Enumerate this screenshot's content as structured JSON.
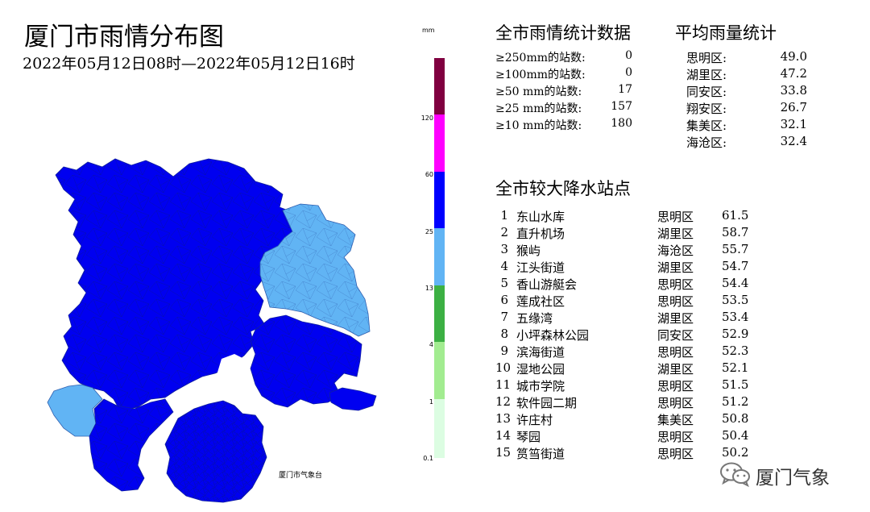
{
  "title": "厦门市雨情分布图",
  "subtitle": "2022年05月12日08时—2022年05月12日16时",
  "credit": "厦门市气象台",
  "legend": {
    "unit": "mm",
    "segments": [
      {
        "color": "#800040"
      },
      {
        "color": "#ff00ff"
      },
      {
        "color": "#0000ff"
      },
      {
        "color": "#61b4f4"
      },
      {
        "color": "#3cb043"
      },
      {
        "color": "#a2ec90"
      },
      {
        "color": "#dcfde2"
      }
    ],
    "ticks": [
      "120",
      "60",
      "25",
      "13",
      "4",
      "1",
      "0.1"
    ]
  },
  "stats": {
    "title": "全市雨情统计数据",
    "rows": [
      {
        "label": "≥250mm的站数:",
        "value": "0"
      },
      {
        "label": "≥100mm的站数:",
        "value": "0"
      },
      {
        "label": "≥50 mm的站数:",
        "value": "17"
      },
      {
        "label": "≥25 mm的站数:",
        "value": "157"
      },
      {
        "label": "≥10 mm的站数:",
        "value": "180"
      }
    ]
  },
  "average": {
    "title": "平均雨量统计",
    "rows": [
      {
        "district": "思明区:",
        "value": "49.0"
      },
      {
        "district": "湖里区:",
        "value": "47.2"
      },
      {
        "district": "同安区:",
        "value": "33.8"
      },
      {
        "district": "翔安区:",
        "value": "26.7"
      },
      {
        "district": "集美区:",
        "value": "32.1"
      },
      {
        "district": "海沧区:",
        "value": "32.4"
      }
    ]
  },
  "stations": {
    "title": "全市较大降水站点",
    "rows": [
      {
        "rank": "1",
        "name": "东山水库",
        "district": "思明区",
        "value": "61.5"
      },
      {
        "rank": "2",
        "name": "直升机场",
        "district": "湖里区",
        "value": "58.7"
      },
      {
        "rank": "3",
        "name": "猴屿",
        "district": "海沧区",
        "value": "55.7"
      },
      {
        "rank": "4",
        "name": "江头街道",
        "district": "湖里区",
        "value": "54.7"
      },
      {
        "rank": "5",
        "name": "香山游艇会",
        "district": "思明区",
        "value": "54.4"
      },
      {
        "rank": "6",
        "name": "莲成社区",
        "district": "思明区",
        "value": "53.5"
      },
      {
        "rank": "7",
        "name": "五缘湾",
        "district": "湖里区",
        "value": "53.4"
      },
      {
        "rank": "8",
        "name": "小坪森林公园",
        "district": "同安区",
        "value": "52.9"
      },
      {
        "rank": "9",
        "name": "滨海街道",
        "district": "思明区",
        "value": "52.3"
      },
      {
        "rank": "10",
        "name": "湿地公园",
        "district": "湖里区",
        "value": "52.1"
      },
      {
        "rank": "11",
        "name": "城市学院",
        "district": "思明区",
        "value": "51.5"
      },
      {
        "rank": "12",
        "name": "软件园二期",
        "district": "思明区",
        "value": "51.2"
      },
      {
        "rank": "13",
        "name": "许庄村",
        "district": "集美区",
        "value": "50.8"
      },
      {
        "rank": "14",
        "name": "琴园",
        "district": "思明区",
        "value": "50.4"
      },
      {
        "rank": "15",
        "name": "筼筜街道",
        "district": "思明区",
        "value": "50.2"
      }
    ]
  },
  "watermark": {
    "text": "厦门气象",
    "icon": "wechat-icon"
  }
}
